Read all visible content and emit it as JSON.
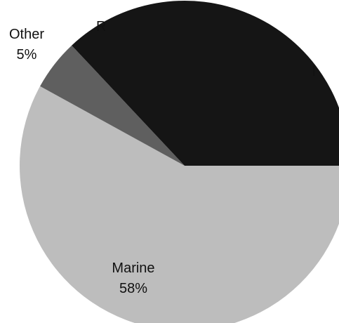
{
  "chart_data": {
    "type": "pie",
    "title": "",
    "slices": [
      {
        "label": "Marine",
        "value": 58,
        "display": "58%",
        "color": "#bdbdbd"
      },
      {
        "label": "Other",
        "value": 5,
        "display": "5%",
        "color": "#5f5f5f"
      },
      {
        "label": "R",
        "value": 37,
        "display": "",
        "color": "#151515"
      }
    ],
    "partially_visible_text": [
      "R",
      "l"
    ],
    "legend": "none",
    "start_angle_deg": 0,
    "direction": "clockwise"
  }
}
